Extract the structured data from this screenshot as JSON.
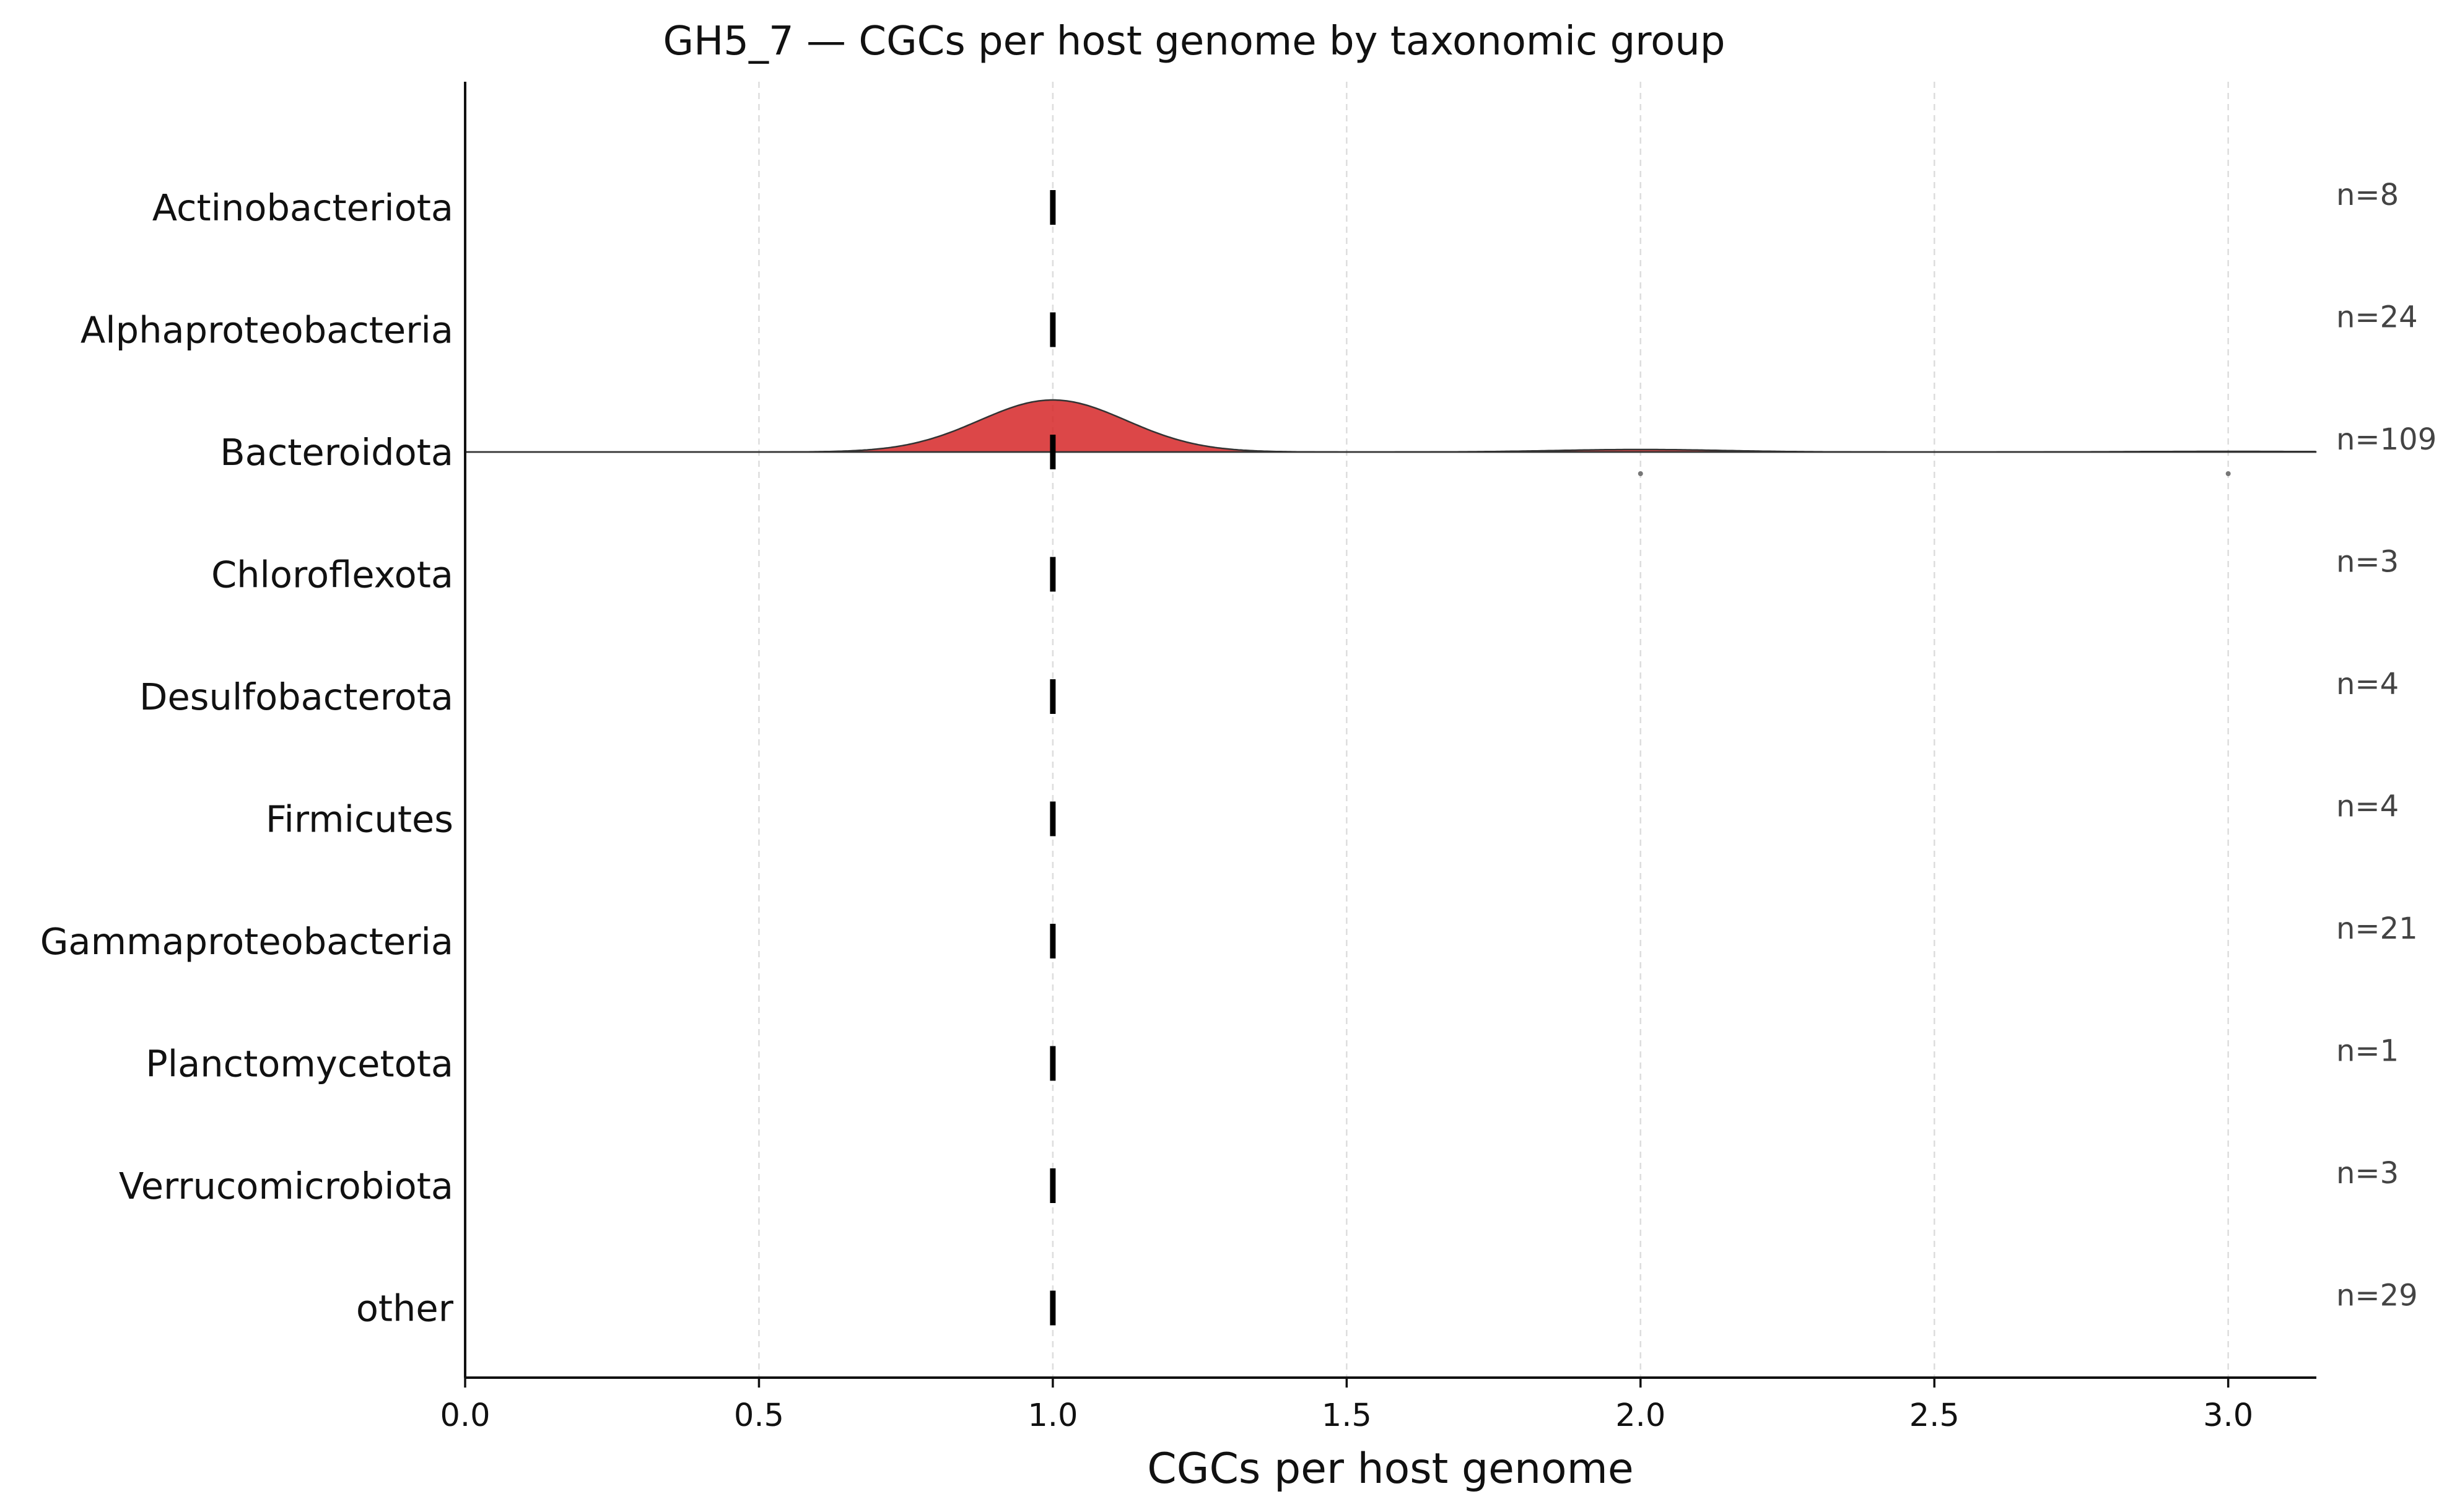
{
  "chart_data": {
    "type": "ridgeline",
    "title": "GH5_7 — CGCs per host genome by taxonomic group",
    "xlabel": "CGCs per host genome",
    "ylabel": "",
    "xlim": [
      0,
      3.15
    ],
    "xticks": [
      "0.0",
      "0.5",
      "1.0",
      "1.5",
      "2.0",
      "2.5",
      "3.0"
    ],
    "grid": "vertical dashed",
    "fill_color": "#d62728",
    "categories": [
      {
        "name": "Actinobacteriota",
        "n_label": "n=8",
        "median": 1.0,
        "ridge": false,
        "points": []
      },
      {
        "name": "Alphaproteobacteria",
        "n_label": "n=24",
        "median": 1.0,
        "ridge": false,
        "points": []
      },
      {
        "name": "Bacteroidota",
        "n_label": "n=109",
        "median": 1.0,
        "ridge": true,
        "points": [
          2.0,
          3.0
        ]
      },
      {
        "name": "Chloroflexota",
        "n_label": "n=3",
        "median": 1.0,
        "ridge": false,
        "points": []
      },
      {
        "name": "Desulfobacterota",
        "n_label": "n=4",
        "median": 1.0,
        "ridge": false,
        "points": []
      },
      {
        "name": "Firmicutes",
        "n_label": "n=4",
        "median": 1.0,
        "ridge": false,
        "points": []
      },
      {
        "name": "Gammaproteobacteria",
        "n_label": "n=21",
        "median": 1.0,
        "ridge": false,
        "points": []
      },
      {
        "name": "Planctomycetota",
        "n_label": "n=1",
        "median": 1.0,
        "ridge": false,
        "points": []
      },
      {
        "name": "Verrucomicrobiota",
        "n_label": "n=3",
        "median": 1.0,
        "ridge": false,
        "points": []
      },
      {
        "name": "other",
        "n_label": "n=29",
        "median": 1.0,
        "ridge": false,
        "points": []
      }
    ]
  }
}
